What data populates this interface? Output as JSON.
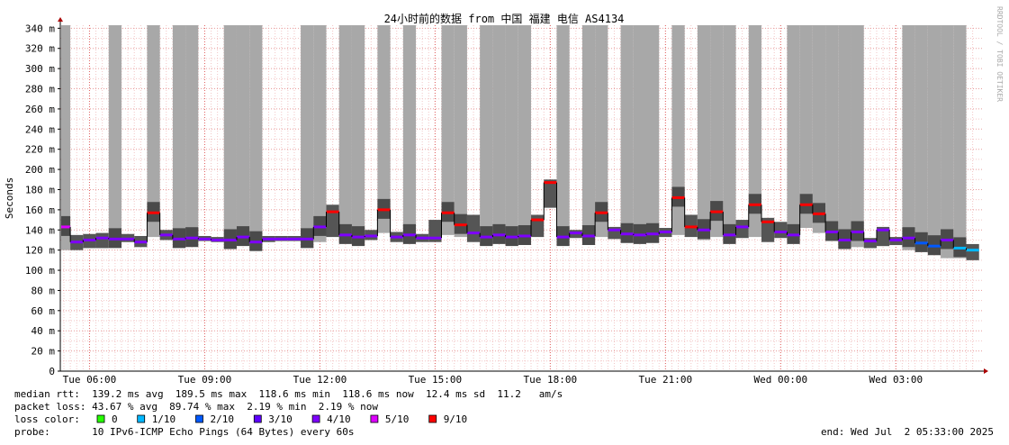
{
  "chart_data": {
    "type": "smokeping",
    "title": "24小时前的数据 from 中国 福建 电信 AS4134",
    "y_label": "Seconds",
    "side_label": "RRDTOOL / TOBI OETIKER",
    "ylim": [
      0,
      0.343
    ],
    "yticks": [
      {
        "value": 0,
        "label": "0"
      },
      {
        "value": 0.02,
        "label": "20 m"
      },
      {
        "value": 0.04,
        "label": "40 m"
      },
      {
        "value": 0.06,
        "label": "60 m"
      },
      {
        "value": 0.08,
        "label": "80 m"
      },
      {
        "value": 0.1,
        "label": "100 m"
      },
      {
        "value": 0.12,
        "label": "120 m"
      },
      {
        "value": 0.14,
        "label": "140 m"
      },
      {
        "value": 0.16,
        "label": "160 m"
      },
      {
        "value": 0.18,
        "label": "180 m"
      },
      {
        "value": 0.2,
        "label": "200 m"
      },
      {
        "value": 0.22,
        "label": "220 m"
      },
      {
        "value": 0.24,
        "label": "240 m"
      },
      {
        "value": 0.26,
        "label": "260 m"
      },
      {
        "value": 0.28,
        "label": "280 m"
      },
      {
        "value": 0.3,
        "label": "300 m"
      },
      {
        "value": 0.32,
        "label": "320 m"
      },
      {
        "value": 0.34,
        "label": "340 m"
      }
    ],
    "grid": true,
    "categories": [
      null,
      null,
      "Tue 06:00",
      null,
      null,
      null,
      null,
      null,
      null,
      null,
      null,
      "Tue 09:00",
      null,
      null,
      null,
      null,
      null,
      null,
      null,
      null,
      "Tue 12:00",
      null,
      null,
      null,
      null,
      null,
      null,
      null,
      null,
      "Tue 15:00",
      null,
      null,
      null,
      null,
      null,
      null,
      null,
      null,
      "Tue 18:00",
      null,
      null,
      null,
      null,
      null,
      null,
      null,
      null,
      "Tue 21:00",
      null,
      null,
      null,
      null,
      null,
      null,
      null,
      null,
      "Wed 00:00",
      null,
      null,
      null,
      null,
      null,
      null,
      null,
      null,
      "Wed 03:00",
      null,
      null,
      null,
      null,
      null,
      null
    ],
    "median": [
      0.143,
      0.128,
      0.13,
      0.132,
      0.131,
      0.131,
      0.128,
      0.157,
      0.135,
      0.131,
      0.132,
      0.131,
      0.13,
      0.13,
      0.133,
      0.128,
      0.131,
      0.131,
      0.131,
      0.131,
      0.143,
      0.158,
      0.135,
      0.133,
      0.134,
      0.16,
      0.133,
      0.135,
      0.132,
      0.132,
      0.157,
      0.145,
      0.137,
      0.133,
      0.135,
      0.133,
      0.134,
      0.15,
      0.187,
      0.133,
      0.137,
      0.134,
      0.157,
      0.14,
      0.136,
      0.135,
      0.136,
      0.138,
      0.172,
      0.143,
      0.14,
      0.158,
      0.135,
      0.143,
      0.165,
      0.148,
      0.138,
      0.135,
      0.165,
      0.156,
      0.138,
      0.13,
      0.138,
      0.129,
      0.14,
      0.13,
      0.132,
      0.127,
      0.124,
      0.13,
      0.122,
      0.12
    ],
    "loss": [
      5,
      4,
      4,
      4,
      4,
      4,
      4,
      9,
      4,
      4,
      4,
      4,
      4,
      4,
      4,
      4,
      4,
      4,
      4,
      4,
      4,
      9,
      4,
      4,
      4,
      9,
      4,
      4,
      4,
      4,
      9,
      9,
      4,
      4,
      4,
      4,
      4,
      9,
      9,
      4,
      4,
      4,
      9,
      4,
      4,
      4,
      4,
      4,
      9,
      9,
      4,
      9,
      4,
      4,
      9,
      9,
      4,
      4,
      9,
      9,
      4,
      4,
      4,
      4,
      4,
      4,
      4,
      2,
      2,
      4,
      1,
      1
    ],
    "smoke_min": [
      0.12,
      0.12,
      0.122,
      0.122,
      0.126,
      0.128,
      0.123,
      0.133,
      0.13,
      0.128,
      0.129,
      0.129,
      0.128,
      0.128,
      0.126,
      0.124,
      0.128,
      0.129,
      0.129,
      0.128,
      0.128,
      0.133,
      0.127,
      0.128,
      0.13,
      0.137,
      0.128,
      0.128,
      0.128,
      0.128,
      0.135,
      0.133,
      0.128,
      0.128,
      0.129,
      0.129,
      0.129,
      0.133,
      0.162,
      0.13,
      0.132,
      0.131,
      0.133,
      0.131,
      0.132,
      0.132,
      0.133,
      0.133,
      0.135,
      0.133,
      0.13,
      0.133,
      0.13,
      0.132,
      0.133,
      0.128,
      0.132,
      0.132,
      0.142,
      0.137,
      0.13,
      0.125,
      0.123,
      0.122,
      0.124,
      0.125,
      0.12,
      0.118,
      0.115,
      0.112,
      0.112,
      0.11
    ],
    "smoke_max": [
      0.343,
      0.135,
      0.136,
      0.137,
      0.343,
      0.136,
      0.134,
      0.343,
      0.14,
      0.343,
      0.343,
      0.134,
      0.133,
      0.343,
      0.343,
      0.343,
      0.134,
      0.134,
      0.134,
      0.343,
      0.343,
      0.165,
      0.343,
      0.343,
      0.14,
      0.343,
      0.138,
      0.343,
      0.136,
      0.15,
      0.343,
      0.343,
      0.155,
      0.343,
      0.343,
      0.343,
      0.343,
      0.155,
      0.19,
      0.343,
      0.14,
      0.343,
      0.343,
      0.143,
      0.343,
      0.343,
      0.343,
      0.142,
      0.343,
      0.155,
      0.343,
      0.343,
      0.343,
      0.15,
      0.343,
      0.152,
      0.148,
      0.343,
      0.343,
      0.343,
      0.343,
      0.343,
      0.343,
      0.132,
      0.143,
      0.133,
      0.343,
      0.343,
      0.343,
      0.343,
      0.343,
      0.126
    ],
    "loss_legend_label": "loss color:",
    "loss_legend": [
      {
        "label": "0",
        "value": 0,
        "color": "#26ff00"
      },
      {
        "label": "1/10",
        "value": 1,
        "color": "#00b8ff"
      },
      {
        "label": "2/10",
        "value": 2,
        "color": "#0059ff"
      },
      {
        "label": "3/10",
        "value": 3,
        "color": "#5e00ff"
      },
      {
        "label": "4/10",
        "value": 4,
        "color": "#7e00ff"
      },
      {
        "label": "5/10",
        "value": 5,
        "color": "#dd00ff"
      },
      {
        "label": "9/10",
        "value": 9,
        "color": "#ff0000"
      }
    ],
    "stats": [
      "median rtt:  139.2 ms avg  189.5 ms max  118.6 ms min  118.6 ms now  12.4 ms sd  11.2   am/s",
      "packet loss: 43.67 % avg  89.74 % max  2.19 % min  2.19 % now"
    ],
    "probe": "probe:       10 IPv6-ICMP Echo Pings (64 Bytes) every 60s",
    "end": "end: Wed Jul  2 05:33:00 2025"
  }
}
